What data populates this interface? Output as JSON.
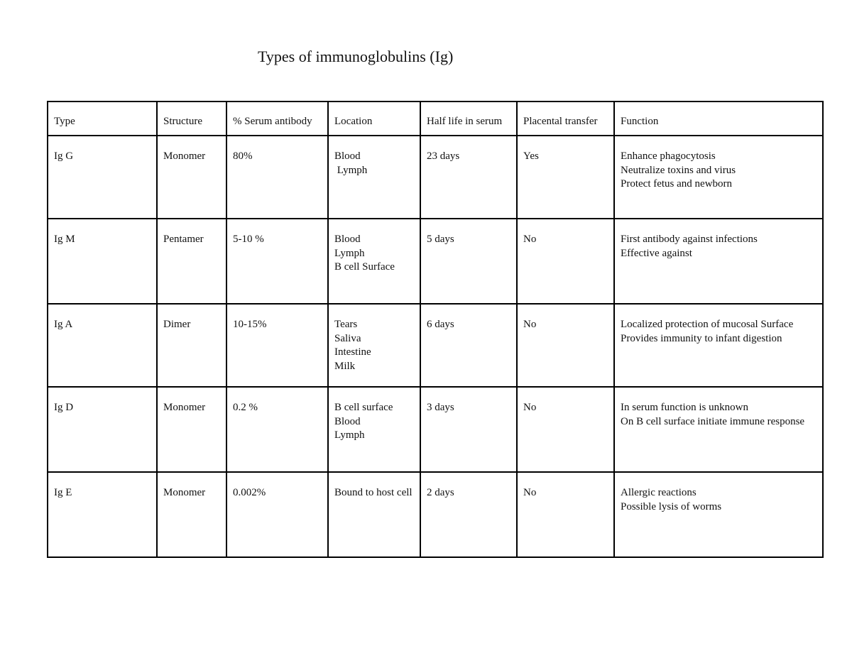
{
  "title": "Types of immunoglobulins (Ig)",
  "table": {
    "headers": [
      "Type",
      "Structure",
      "% Serum antibody",
      "Location",
      "Half life in serum",
      "Placental transfer",
      "Function"
    ],
    "rows": [
      {
        "type": "Ig G",
        "structure": "Monomer",
        "serum": "80%",
        "location": [
          "Blood",
          " Lymph"
        ],
        "half_life": "23 days",
        "placental": "Yes",
        "function": [
          "Enhance phagocytosis",
          "Neutralize toxins and virus",
          "Protect fetus and newborn"
        ]
      },
      {
        "type": "Ig M",
        "structure": "Pentamer",
        "serum": "5-10 %",
        "location": [
          "Blood",
          "Lymph",
          "B cell Surface"
        ],
        "half_life": "5 days",
        "placental": "No",
        "function": [
          "First antibody against infections",
          "Effective against"
        ]
      },
      {
        "type": "Ig A",
        "structure": "Dimer",
        "serum": "10-15%",
        "location": [
          "Tears",
          "Saliva",
          "Intestine",
          "Milk"
        ],
        "half_life": "6 days",
        "placental": "No",
        "function": [
          "Localized protection of mucosal Surface",
          "Provides immunity to infant digestion"
        ]
      },
      {
        "type": "Ig D",
        "structure": "Monomer",
        "serum": "0.2 %",
        "location": [
          "B cell surface",
          "Blood",
          "Lymph"
        ],
        "half_life": "3 days",
        "placental": "No",
        "function": [
          "In serum function is unknown",
          "On B cell surface initiate immune response"
        ]
      },
      {
        "type": "Ig E",
        "structure": "Monomer",
        "serum": "0.002%",
        "location": [
          "Bound to host cell"
        ],
        "half_life": "2 days",
        "placental": "No",
        "function": [
          "Allergic reactions",
          "Possible lysis of worms"
        ]
      }
    ]
  }
}
